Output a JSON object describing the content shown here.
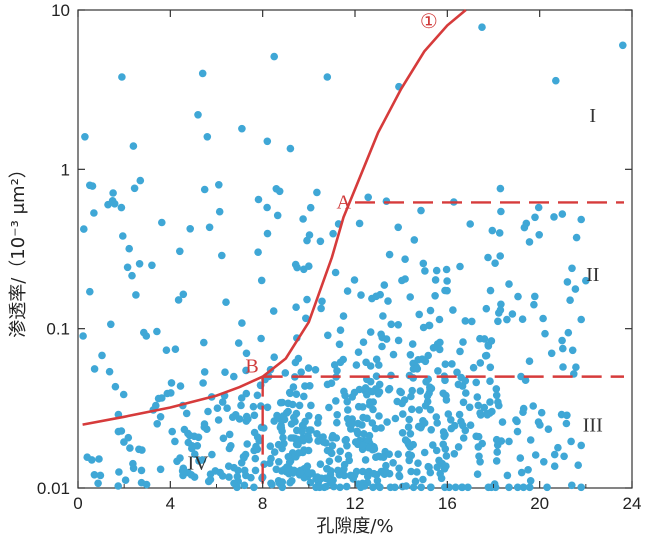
{
  "chart_data": {
    "type": "scatter",
    "title": "",
    "xlabel": "孔隙度/%",
    "ylabel": "渗透率/（10⁻³ μm²）",
    "xlim": [
      0,
      24
    ],
    "ylim": [
      0.01,
      10
    ],
    "yscale": "log",
    "x_ticks": [
      "0",
      "4",
      "8",
      "12",
      "16",
      "20",
      "24"
    ],
    "y_ticks": [
      "0.01",
      "0.1",
      "1",
      "10"
    ],
    "grid": false,
    "point_color": "#3fa7d6",
    "line_color": "#d63b3b",
    "scatter_seed": 7,
    "scatter_count": 780,
    "points": [
      {
        "x": 23.6,
        "y": 6.0
      },
      {
        "x": 17.5,
        "y": 7.8
      },
      {
        "x": 8.5,
        "y": 5.1
      },
      {
        "x": 1.9,
        "y": 3.8
      },
      {
        "x": 5.4,
        "y": 4.0
      },
      {
        "x": 10.8,
        "y": 3.8
      },
      {
        "x": 20.7,
        "y": 3.6
      },
      {
        "x": 13.9,
        "y": 3.3
      },
      {
        "x": 0.3,
        "y": 1.6
      },
      {
        "x": 5.2,
        "y": 2.2
      },
      {
        "x": 5.6,
        "y": 1.6
      },
      {
        "x": 7.1,
        "y": 1.8
      },
      {
        "x": 8.2,
        "y": 1.5
      },
      {
        "x": 9.2,
        "y": 1.35
      },
      {
        "x": 2.4,
        "y": 1.4
      },
      {
        "x": 1.3,
        "y": 0.6
      },
      {
        "x": 2.7,
        "y": 0.85
      },
      {
        "x": 6.1,
        "y": 0.8
      },
      {
        "x": 3.2,
        "y": 0.25
      },
      {
        "x": 22.0,
        "y": 0.2
      },
      {
        "x": 19.8,
        "y": 0.5
      },
      {
        "x": 21.0,
        "y": 0.075
      },
      {
        "x": 19.5,
        "y": 0.013
      },
      {
        "x": 0.6,
        "y": 0.015
      },
      {
        "x": 11.5,
        "y": 0.12
      },
      {
        "x": 14.5,
        "y": 0.08
      }
    ],
    "curve": {
      "name": "①",
      "x": [
        0.2,
        2,
        4,
        6,
        7,
        8,
        9,
        10,
        11,
        11.5,
        12,
        13,
        14,
        15,
        16,
        16.8
      ],
      "y": [
        0.025,
        0.028,
        0.032,
        0.038,
        0.043,
        0.05,
        0.065,
        0.11,
        0.28,
        0.5,
        0.75,
        1.7,
        3.2,
        5.5,
        8.0,
        10.0
      ]
    },
    "threshold_A": {
      "label": "A",
      "x": 12.0,
      "y": 0.62,
      "x_end": 24
    },
    "threshold_B": {
      "label": "B",
      "x": 8.0,
      "y": 0.05,
      "x_end": 24
    },
    "regions": [
      {
        "label": "I",
        "x": 22.3,
        "y": 2.2
      },
      {
        "label": "II",
        "x": 22.3,
        "y": 0.22
      },
      {
        "label": "III",
        "x": 22.3,
        "y": 0.025
      },
      {
        "label": "IV",
        "x": 5.2,
        "y": 0.0145
      }
    ],
    "curve_label": {
      "label": "①",
      "x": 15.2,
      "y": 8.5
    }
  }
}
